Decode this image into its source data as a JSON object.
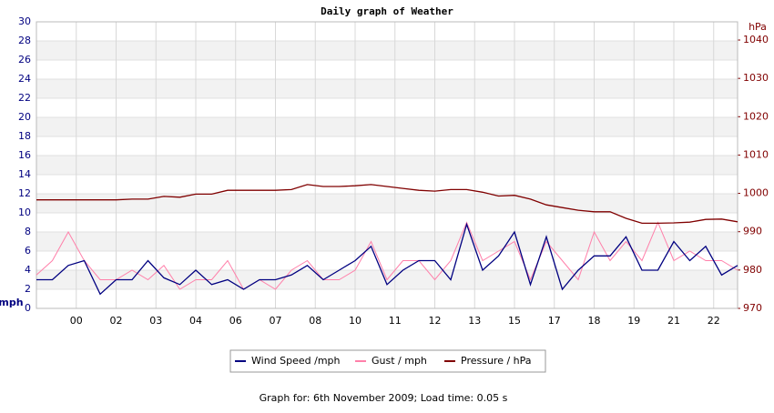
{
  "chart_data": {
    "type": "line",
    "title": "Daily graph of Weather",
    "y_label": "mph",
    "y2_label": "hPa",
    "footer": "Graph for: 6th November 2009; Load time: 0.05 s",
    "x": [
      0,
      0.4,
      0.8,
      1.2,
      1.6,
      2,
      2.4,
      2.8,
      3.2,
      3.6,
      4,
      4.4,
      4.8,
      5.2,
      5.6,
      6,
      6.4,
      6.8,
      7.2,
      7.6,
      8,
      8.4,
      8.8,
      9.2,
      9.6,
      10,
      10.4,
      10.8,
      11.2,
      11.6,
      12,
      12.4,
      12.8,
      13.2,
      13.6,
      14,
      14.4,
      14.8,
      15.2,
      15.6,
      16,
      16.4,
      16.8,
      17.2,
      17.6
    ],
    "xlim": [
      0,
      17.6
    ],
    "xticks": [
      {
        "value": 1,
        "label": "00"
      },
      {
        "value": 2,
        "label": "02"
      },
      {
        "value": 3,
        "label": "03"
      },
      {
        "value": 4,
        "label": "04"
      },
      {
        "value": 5,
        "label": "06"
      },
      {
        "value": 6,
        "label": "07"
      },
      {
        "value": 7,
        "label": "08"
      },
      {
        "value": 8,
        "label": "10"
      },
      {
        "value": 9,
        "label": "11"
      },
      {
        "value": 10,
        "label": "12"
      },
      {
        "value": 11,
        "label": "13"
      },
      {
        "value": 12,
        "label": "15"
      },
      {
        "value": 13,
        "label": "17"
      },
      {
        "value": 14,
        "label": "18"
      },
      {
        "value": 15,
        "label": "19"
      },
      {
        "value": 16,
        "label": "21"
      },
      {
        "value": 17,
        "label": "22"
      }
    ],
    "ylim": [
      0,
      30
    ],
    "yticks": [
      0,
      2,
      4,
      6,
      8,
      10,
      12,
      14,
      16,
      18,
      20,
      22,
      24,
      26,
      28,
      30
    ],
    "y2lim": [
      970,
      1044.75
    ],
    "y2ticks": [
      970,
      980,
      990,
      1000,
      1010,
      1020,
      1030,
      1040
    ],
    "grid": true,
    "series": [
      {
        "name": "Wind Speed /mph",
        "color": "#000080",
        "values": [
          3,
          3,
          4.5,
          5,
          1.5,
          3,
          3,
          5,
          3.2,
          2.5,
          4,
          2.5,
          3,
          2,
          3,
          3,
          3.5,
          4.5,
          3,
          4,
          5,
          6.5,
          2.5,
          4,
          5,
          5,
          3,
          8.8,
          4,
          5.5,
          8,
          2.5,
          7.5,
          2,
          4,
          5.5,
          5.5,
          7.5,
          4,
          4,
          7,
          5,
          6.5,
          3.5,
          4.5
        ]
      },
      {
        "name": "Gust / mph",
        "color": "#ff80aa",
        "values": [
          3.5,
          5,
          8,
          5,
          3,
          3,
          4,
          3,
          4.5,
          2,
          3,
          3,
          5,
          2,
          3,
          2,
          4,
          5,
          3,
          3,
          4,
          7,
          3,
          5,
          5,
          3,
          5,
          9,
          5,
          6,
          7,
          3,
          7,
          5,
          3,
          8,
          5,
          7,
          5,
          9,
          5,
          6,
          5,
          5,
          4
        ]
      },
      {
        "name": "Pressure / hPa",
        "color": "#800000",
        "axis": "y2",
        "values": [
          998.3,
          998.3,
          998.3,
          998.3,
          998.3,
          998.3,
          998.5,
          998.5,
          999.2,
          999.0,
          999.8,
          999.8,
          1000.8,
          1000.8,
          1000.8,
          1000.8,
          1001.0,
          1002.3,
          1001.8,
          1001.8,
          1002.0,
          1002.3,
          1001.8,
          1001.3,
          1000.8,
          1000.6,
          1001.0,
          1001.0,
          1000.3,
          999.3,
          999.5,
          998.5,
          997.0,
          996.3,
          995.6,
          995.2,
          995.2,
          993.5,
          992.2,
          992.2,
          992.3,
          992.5,
          993.2,
          993.3,
          992.6
        ]
      }
    ]
  }
}
